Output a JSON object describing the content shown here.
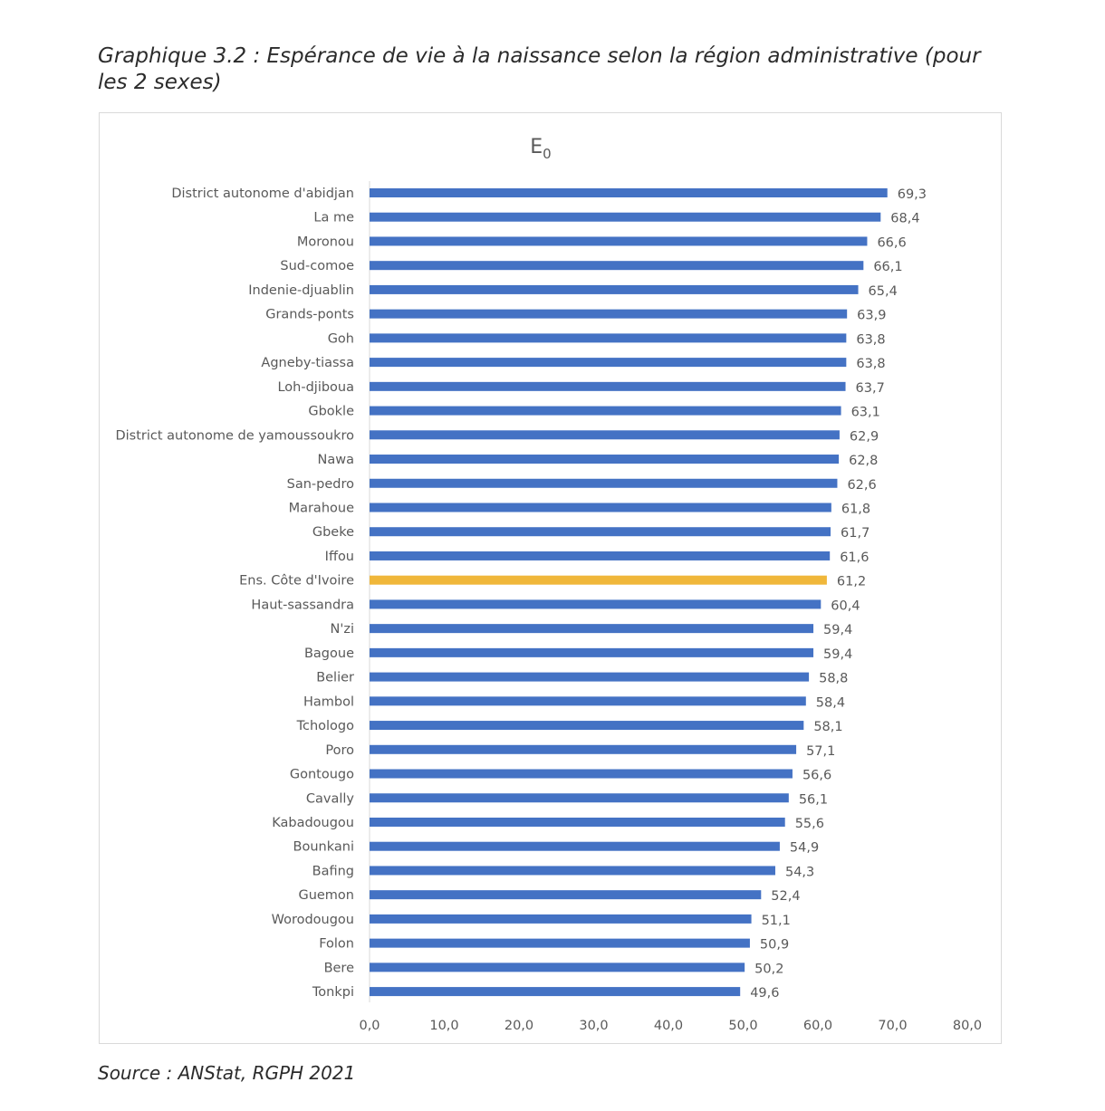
{
  "caption": {
    "line1": "Graphique 3.2 : Espérance de vie à la naissance selon la région administrative (pour",
    "line2": "les 2 sexes)"
  },
  "source": "Source : ANStat, RGPH 2021",
  "colors": {
    "bar": "#4472c4",
    "highlight": "#f0b73a",
    "text": "#595959"
  },
  "chart_data": {
    "type": "bar",
    "orientation": "horizontal",
    "title_main": "E",
    "title_sub": "0",
    "categories": [
      "District autonome d'abidjan",
      "La me",
      "Moronou",
      "Sud-comoe",
      "Indenie-djuablin",
      "Grands-ponts",
      "Goh",
      "Agneby-tiassa",
      "Loh-djiboua",
      "Gbokle",
      "District autonome de yamoussoukro",
      "Nawa",
      "San-pedro",
      "Marahoue",
      "Gbeke",
      "Iffou",
      "Ens. Côte d'Ivoire",
      "Haut-sassandra",
      "N'zi",
      "Bagoue",
      "Belier",
      "Hambol",
      "Tchologo",
      "Poro",
      "Gontougo",
      "Cavally",
      "Kabadougou",
      "Bounkani",
      "Bafing",
      "Guemon",
      "Worodougou",
      "Folon",
      "Bere",
      "Tonkpi"
    ],
    "values": [
      69.3,
      68.4,
      66.6,
      66.1,
      65.4,
      63.9,
      63.8,
      63.8,
      63.7,
      63.1,
      62.9,
      62.8,
      62.6,
      61.8,
      61.7,
      61.6,
      61.2,
      60.4,
      59.4,
      59.4,
      58.8,
      58.4,
      58.1,
      57.1,
      56.6,
      56.1,
      55.6,
      54.9,
      54.3,
      52.4,
      51.1,
      50.9,
      50.2,
      49.6
    ],
    "value_labels": [
      "69,3",
      "68,4",
      "66,6",
      "66,1",
      "65,4",
      "63,9",
      "63,8",
      "63,8",
      "63,7",
      "63,1",
      "62,9",
      "62,8",
      "62,6",
      "61,8",
      "61,7",
      "61,6",
      "61,2",
      "60,4",
      "59,4",
      "59,4",
      "58,8",
      "58,4",
      "58,1",
      "57,1",
      "56,6",
      "56,1",
      "55,6",
      "54,9",
      "54,3",
      "52,4",
      "51,1",
      "50,9",
      "50,2",
      "49,6"
    ],
    "highlight_category": "Ens. Côte d'Ivoire",
    "xlim": [
      0,
      80
    ],
    "xticks": [
      0,
      10,
      20,
      30,
      40,
      50,
      60,
      70,
      80
    ],
    "xtick_labels": [
      "0,0",
      "10,0",
      "20,0",
      "30,0",
      "40,0",
      "50,0",
      "60,0",
      "70,0",
      "80,0"
    ],
    "grid": false
  }
}
